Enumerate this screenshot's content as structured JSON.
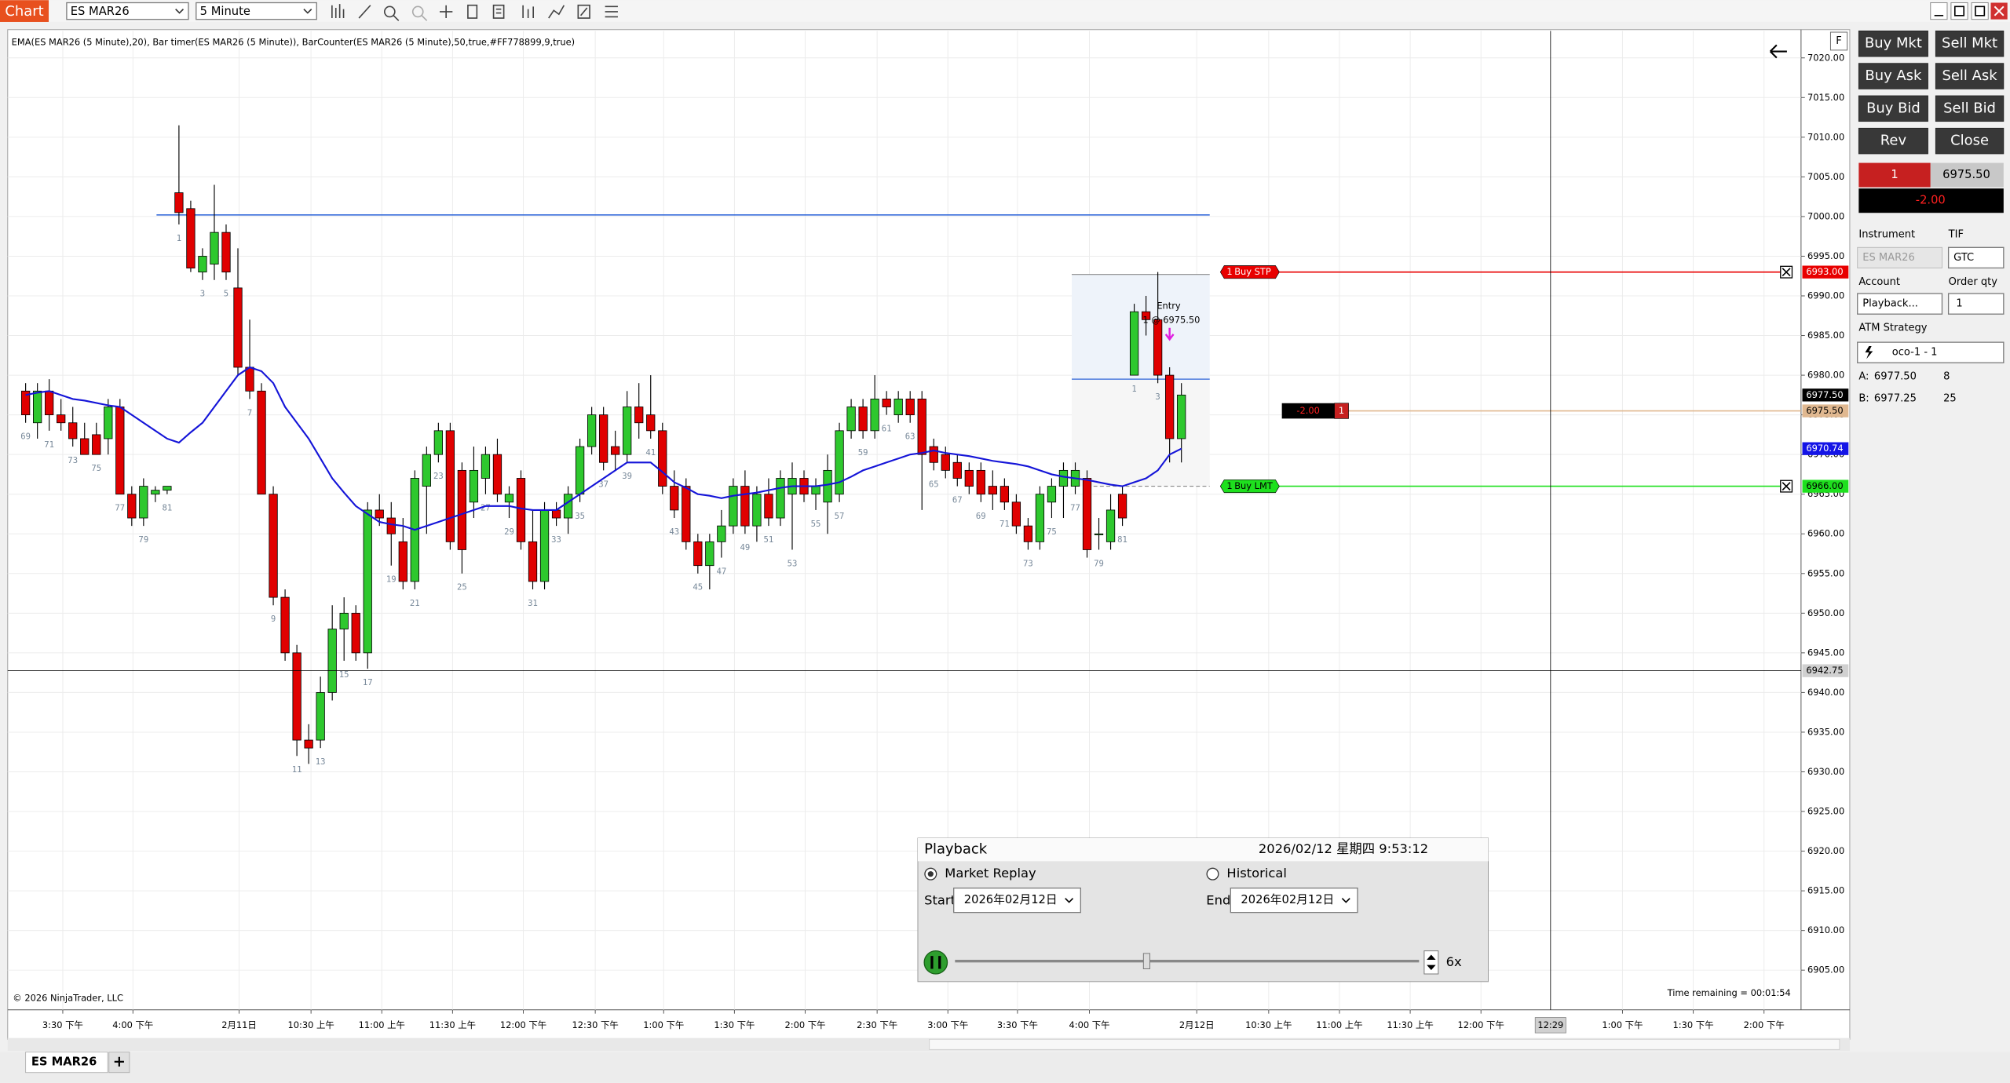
{
  "toolbar": {
    "tab": "Chart",
    "instrument": "ES MAR26",
    "interval": "5 Minute"
  },
  "chart": {
    "indicator_label": "EMA(ES MAR26 (5 Minute),20), Bar timer(ES MAR26 (5 Minute)), BarCounter(ES MAR26 (5 Minute),50,true,#FF778899,9,true)",
    "copyright": "© 2026 NinjaTrader, LLC",
    "time_remaining": "Time remaining = 00:01:54",
    "ylim": [
      6900,
      7023.4
    ],
    "xlim": [
      -1.52,
      150.54
    ],
    "yticks": [
      {
        "value": 6905,
        "label": "6905.00"
      },
      {
        "value": 6910,
        "label": "6910.00"
      },
      {
        "value": 6915,
        "label": "6915.00"
      },
      {
        "value": 6920,
        "label": "6920.00"
      },
      {
        "value": 6925,
        "label": "6925.00"
      },
      {
        "value": 6930,
        "label": "6930.00"
      },
      {
        "value": 6935,
        "label": "6935.00"
      },
      {
        "value": 6940,
        "label": "6940.00"
      },
      {
        "value": 6945,
        "label": "6945.00"
      },
      {
        "value": 6950,
        "label": "6950.00"
      },
      {
        "value": 6955,
        "label": "6955.00"
      },
      {
        "value": 6960,
        "label": "6960.00"
      },
      {
        "value": 6965,
        "label": "6965.00"
      },
      {
        "value": 6970,
        "label": "6970.00"
      },
      {
        "value": 6975,
        "label": "6975.00"
      },
      {
        "value": 6980,
        "label": "6980.00"
      },
      {
        "value": 6985,
        "label": "6985.00"
      },
      {
        "value": 6990,
        "label": "6990.00"
      },
      {
        "value": 6995,
        "label": "6995.00"
      },
      {
        "value": 7000,
        "label": "7000.00"
      },
      {
        "value": 7005,
        "label": "7005.00"
      },
      {
        "value": 7010,
        "label": "7010.00"
      },
      {
        "value": 7015,
        "label": "7015.00"
      },
      {
        "value": 7020,
        "label": "7020.00"
      }
    ],
    "xticks": [
      {
        "value": 3.15,
        "label": "3:30 下午"
      },
      {
        "value": 9.1,
        "label": "4:00 下午"
      },
      {
        "value": 18.1,
        "label": "2月11日"
      },
      {
        "value": 24.2,
        "label": "10:30 上午"
      },
      {
        "value": 30.2,
        "label": "11:00 上午"
      },
      {
        "value": 36.2,
        "label": "11:30 上午"
      },
      {
        "value": 42.2,
        "label": "12:00 下午"
      },
      {
        "value": 48.3,
        "label": "12:30 下午"
      },
      {
        "value": 54.1,
        "label": "1:00 下午"
      },
      {
        "value": 60.1,
        "label": "1:30 下午"
      },
      {
        "value": 66.1,
        "label": "2:00 下午"
      },
      {
        "value": 72.2,
        "label": "2:30 下午"
      },
      {
        "value": 78.2,
        "label": "3:00 下午"
      },
      {
        "value": 84.1,
        "label": "3:30 下午"
      },
      {
        "value": 90.2,
        "label": "4:00 下午"
      },
      {
        "value": 99.3,
        "label": "2月12日"
      },
      {
        "value": 105.4,
        "label": "10:30 上午"
      },
      {
        "value": 111.4,
        "label": "11:00 上午"
      },
      {
        "value": 117.4,
        "label": "11:30 上午"
      },
      {
        "value": 123.4,
        "label": "12:00 下午"
      },
      {
        "value": 135.4,
        "label": "1:00 下午"
      },
      {
        "value": 141.4,
        "label": "1:30 下午"
      },
      {
        "value": 147.4,
        "label": "2:00 下午"
      }
    ],
    "up_color": "#2ec82e",
    "down_color": "#e00000",
    "ema_color": "#1414d8",
    "grid": true,
    "candles": [
      [
        6978,
        6979,
        6974,
        6975
      ],
      [
        6974,
        6979,
        6972,
        6978
      ],
      [
        6978,
        6979.5,
        6973,
        6975
      ],
      [
        6975,
        6977,
        6973,
        6974
      ],
      [
        6974,
        6976,
        6971,
        6972
      ],
      [
        6972,
        6974,
        6970,
        6970
      ],
      [
        6972.5,
        6974,
        6970,
        6970
      ],
      [
        6972,
        6977,
        6970,
        6976
      ],
      [
        6976,
        6977,
        6965,
        6965
      ],
      [
        6965,
        6966,
        6961,
        6962
      ],
      [
        6962,
        6967,
        6961,
        6966
      ],
      [
        6965,
        6966,
        6964,
        6965.5
      ],
      [
        6965.5,
        6966,
        6965,
        6966
      ],
      [
        7003,
        7011.5,
        6999,
        7000.5
      ],
      [
        7001,
        7002,
        6993,
        6993.5
      ],
      [
        6993,
        6996,
        6992,
        6995
      ],
      [
        6994,
        7004,
        6992,
        6998
      ],
      [
        6998,
        6999,
        6992,
        6993
      ],
      [
        6991,
        6996,
        6980,
        6981
      ],
      [
        6981,
        6987,
        6977,
        6978
      ],
      [
        6978,
        6979,
        6965,
        6965
      ],
      [
        6965,
        6966,
        6951,
        6952
      ],
      [
        6952,
        6953,
        6944,
        6945
      ],
      [
        6945,
        6946,
        6932,
        6934
      ],
      [
        6934,
        6936,
        6931,
        6933
      ],
      [
        6934,
        6942,
        6933,
        6940
      ],
      [
        6940,
        6951,
        6939,
        6948
      ],
      [
        6948,
        6952,
        6944,
        6950
      ],
      [
        6950,
        6951,
        6944,
        6945
      ],
      [
        6945,
        6964,
        6943,
        6963
      ],
      [
        6963,
        6965,
        6961,
        6962
      ],
      [
        6962,
        6964,
        6956,
        6960
      ],
      [
        6959,
        6962,
        6953,
        6954
      ],
      [
        6954,
        6968,
        6953,
        6967
      ],
      [
        6966,
        6971,
        6960,
        6970
      ],
      [
        6970,
        6974,
        6969,
        6973
      ],
      [
        6973,
        6974,
        6958,
        6959
      ],
      [
        6968,
        6969,
        6955,
        6958
      ],
      [
        6964,
        6971,
        6962,
        6968
      ],
      [
        6967,
        6971,
        6965,
        6970
      ],
      [
        6970,
        6972,
        6964,
        6965
      ],
      [
        6964,
        6966,
        6962,
        6965
      ],
      [
        6967,
        6968,
        6958,
        6959
      ],
      [
        6959,
        6963,
        6953,
        6954
      ],
      [
        6954,
        6964,
        6953,
        6963
      ],
      [
        6963,
        6964,
        6961,
        6962
      ],
      [
        6962,
        6966,
        6960,
        6965
      ],
      [
        6965,
        6972,
        6964,
        6971
      ],
      [
        6971,
        6976,
        6970,
        6975
      ],
      [
        6975,
        6976,
        6968,
        6969
      ],
      [
        6971,
        6973,
        6968,
        6970
      ],
      [
        6970,
        6978,
        6969,
        6976
      ],
      [
        6976,
        6979,
        6972,
        6974
      ],
      [
        6975,
        6980,
        6972,
        6973
      ],
      [
        6973,
        6974,
        6965,
        6966
      ],
      [
        6966,
        6968,
        6962,
        6963
      ],
      [
        6966,
        6967,
        6958,
        6959
      ],
      [
        6959,
        6960,
        6955,
        6956
      ],
      [
        6956,
        6960,
        6953,
        6959
      ],
      [
        6959,
        6963,
        6957,
        6961
      ],
      [
        6961,
        6967,
        6960,
        6966
      ],
      [
        6966,
        6968,
        6960,
        6961
      ],
      [
        6961,
        6966,
        6959,
        6965
      ],
      [
        6965,
        6967,
        6961,
        6962
      ],
      [
        6962,
        6968,
        6961,
        6967
      ],
      [
        6965,
        6969,
        6958,
        6967
      ],
      [
        6967,
        6968,
        6964,
        6965
      ],
      [
        6965,
        6967,
        6963,
        6966
      ],
      [
        6964,
        6970,
        6960,
        6968
      ],
      [
        6965,
        6974,
        6964,
        6973
      ],
      [
        6973,
        6977,
        6972,
        6976
      ],
      [
        6976,
        6977,
        6972,
        6973
      ],
      [
        6973,
        6980,
        6972,
        6977
      ],
      [
        6977,
        6978,
        6975,
        6976
      ],
      [
        6975,
        6978,
        6974,
        6977
      ],
      [
        6977,
        6978,
        6974,
        6975
      ],
      [
        6977,
        6978,
        6963,
        6970
      ],
      [
        6971,
        6972,
        6968,
        6969
      ],
      [
        6970,
        6971,
        6967,
        6968
      ],
      [
        6969,
        6970,
        6966,
        6967
      ],
      [
        6968,
        6969,
        6965,
        6966
      ],
      [
        6968,
        6969,
        6964,
        6965
      ],
      [
        6966,
        6968,
        6963,
        6965
      ],
      [
        6966,
        6967,
        6963,
        6964
      ],
      [
        6964,
        6965,
        6960,
        6961
      ],
      [
        6961,
        6962,
        6958,
        6959
      ],
      [
        6959,
        6966,
        6958,
        6965
      ],
      [
        6964,
        6967,
        6962,
        6966
      ],
      [
        6966,
        6969,
        6962,
        6968
      ],
      [
        6966,
        6969,
        6965,
        6968
      ],
      [
        6967,
        6968,
        6957,
        6958
      ],
      [
        6960,
        6962,
        6958,
        6960
      ],
      [
        6959,
        6965,
        6958,
        6963
      ],
      [
        6965,
        6966,
        6961,
        6962
      ],
      [
        6980,
        6989,
        6980,
        6988
      ],
      [
        6988,
        6990,
        6985,
        6987
      ],
      [
        6987,
        6993,
        6979,
        6980
      ],
      [
        6980,
        6981,
        6969,
        6972
      ],
      [
        6972,
        6979,
        6969,
        6977.5
      ]
    ],
    "bar_counts": [
      69,
      null,
      71,
      null,
      73,
      null,
      75,
      null,
      77,
      null,
      79,
      null,
      81,
      1,
      null,
      3,
      null,
      5,
      null,
      7,
      null,
      9,
      null,
      11,
      null,
      13,
      null,
      15,
      null,
      17,
      null,
      19,
      null,
      21,
      null,
      23,
      null,
      25,
      null,
      27,
      null,
      29,
      null,
      31,
      null,
      33,
      null,
      35,
      null,
      37,
      null,
      39,
      null,
      41,
      null,
      43,
      null,
      45,
      null,
      47,
      null,
      49,
      null,
      51,
      null,
      53,
      null,
      55,
      null,
      57,
      null,
      59,
      null,
      61,
      null,
      63,
      null,
      65,
      null,
      67,
      null,
      69,
      null,
      71,
      null,
      73,
      null,
      75,
      null,
      77,
      null,
      79,
      null,
      81,
      1,
      null,
      3,
      null,
      null
    ],
    "ema": [
      6977.5,
      6977.8,
      6978,
      6977.5,
      6977,
      6976.8,
      6976.5,
      6976.2,
      6976,
      6975,
      6974,
      6973,
      6972,
      6971.5,
      6972.8,
      6974,
      6976,
      6978,
      6980,
      6981,
      6980.5,
      6979,
      6976,
      6974,
      6972,
      6969.5,
      6967,
      6965.2,
      6963.5,
      6962.5,
      6961.5,
      6961.2,
      6961,
      6960.5,
      6961,
      6961.5,
      6962,
      6962.5,
      6963,
      6963.5,
      6963.5,
      6963.5,
      6963.2,
      6963,
      6963,
      6963,
      6964,
      6965,
      6966,
      6967,
      6968,
      6969,
      6969,
      6969,
      6967.8,
      6966.5,
      6965.8,
      6965,
      6964.8,
      6964.5,
      6964.8,
      6965,
      6965.2,
      6965.5,
      6965.8,
      6966,
      6966,
      6966,
      6966.2,
      6966.5,
      6967.2,
      6968,
      6968.5,
      6969,
      6969.5,
      6970,
      6970.2,
      6970.5,
      6970.2,
      6970,
      6969.8,
      6969.5,
      6969.2,
      6969,
      6968.8,
      6968.5,
      6968,
      6967.5,
      6967.2,
      6967,
      6966.8,
      6966.5,
      6966.2,
      6966,
      6966.5,
      6967,
      6968,
      6970,
      6970.74
    ],
    "levels": [
      {
        "price": 7000.2,
        "from": 11.1,
        "to": 100.4,
        "color": "#2a62d8"
      }
    ],
    "trade_box": {
      "from": 88.7,
      "to": 100.4,
      "target": 6992.7,
      "entry": 6979.5,
      "stop": 6966
    },
    "entry_marker": {
      "title": "Entry",
      "detail": "1 @ 6975.50",
      "bar": 97,
      "price": 6985,
      "color": "#e020e0"
    },
    "orders": [
      {
        "qty": 1,
        "label": "Buy STP",
        "price": 6993,
        "price_label": "6993.00",
        "color": "#e80000",
        "text_color": "#ffffff"
      },
      {
        "qty": 1,
        "label": "Buy LMT",
        "price": 6966,
        "price_label": "6966.00",
        "color": "#1ee01e",
        "text_color": "#000000"
      }
    ],
    "position": {
      "qty": 1,
      "pnl": "-2.00",
      "price": 6975.5,
      "price_label": "6975.50",
      "color": "#e0b890"
    },
    "axis_markers": [
      {
        "price": 6977.5,
        "label": "6977.50",
        "bg": "#000000",
        "fg": "#ffffff"
      },
      {
        "price": 6970.74,
        "label": "6970.74",
        "bg": "#1414e6",
        "fg": "#ffffff"
      }
    ],
    "crosshair": {
      "price": 6942.75,
      "price_label": "6942.75",
      "x": 129.3,
      "time_label": "12:29"
    }
  },
  "order_panel": {
    "buttons": [
      "Buy Mkt",
      "Sell Mkt",
      "Buy Ask",
      "Sell Ask",
      "Buy Bid",
      "Sell Bid",
      "Rev",
      "Close"
    ],
    "position_qty": "1",
    "position_price": "6975.50",
    "position_pnl": "-2.00",
    "instrument_label": "Instrument",
    "instrument": "ES MAR26",
    "tif_label": "TIF",
    "tif": "GTC",
    "account_label": "Account",
    "account": "Playback...",
    "qty_label": "Order qty",
    "qty": "1",
    "atm_label": "ATM Strategy",
    "atm": "oco-1 - 1",
    "ask_label": "A:",
    "ask_price": "6977.50",
    "ask_size": "8",
    "bid_label": "B:",
    "bid_price": "6977.25",
    "bid_size": "25"
  },
  "playback": {
    "title": "Playback",
    "datetime": "2026/02/12 星期四 9:53:12",
    "replay": "Market Replay",
    "historical": "Historical",
    "start_label": "Start",
    "start_date": "2026年02月12日",
    "end_label": "End",
    "end_date": "2026年02月12日",
    "speed": "6x"
  },
  "tabs": {
    "active": "ES MAR26",
    "add": "+"
  }
}
